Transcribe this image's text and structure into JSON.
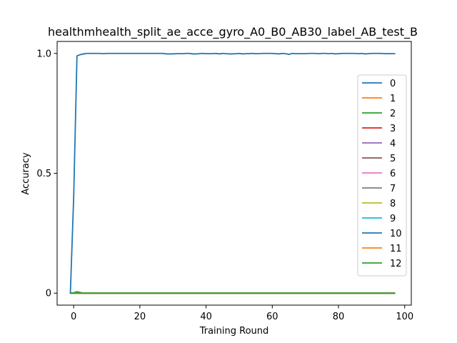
{
  "chart_data": {
    "type": "line",
    "title": "healthmhealth_split_ae_acce_gyro_A0_B0_AB30_label_AB_test_B",
    "xlabel": "Training Round",
    "ylabel": "Accuracy",
    "xlim": [
      -5,
      102
    ],
    "ylim": [
      -0.05,
      1.05
    ],
    "x_ticks": [
      0,
      20,
      40,
      60,
      80,
      100
    ],
    "x_tick_labels": [
      "0",
      "20",
      "40",
      "60",
      "80",
      "100"
    ],
    "y_ticks": [
      0,
      0.5,
      1.0
    ],
    "y_tick_labels": [
      "0",
      "0.5",
      "1.0"
    ],
    "grid": false,
    "legend_position": "right",
    "series": [
      {
        "name": "0",
        "color": "#1f77b4",
        "x_range": [
          -1,
          97
        ],
        "values_key": "flat0"
      },
      {
        "name": "1",
        "color": "#ff7f0e",
        "x_range": [
          -1,
          97
        ],
        "values_key": "flat0"
      },
      {
        "name": "2",
        "color": "#2ca02c",
        "x_range": [
          -1,
          97
        ],
        "values_key": "bump"
      },
      {
        "name": "3",
        "color": "#d62728",
        "x_range": [
          -1,
          97
        ],
        "values_key": "flat0"
      },
      {
        "name": "4",
        "color": "#9467bd",
        "x_range": [
          -1,
          97
        ],
        "values_key": "flat0"
      },
      {
        "name": "5",
        "color": "#8c564b",
        "x_range": [
          -1,
          97
        ],
        "values_key": "flat0"
      },
      {
        "name": "6",
        "color": "#e377c2",
        "x_range": [
          -1,
          97
        ],
        "values_key": "flat0"
      },
      {
        "name": "7",
        "color": "#7f7f7f",
        "x_range": [
          -1,
          97
        ],
        "values_key": "flat0"
      },
      {
        "name": "8",
        "color": "#bcbd22",
        "x_range": [
          -1,
          97
        ],
        "values_key": "flat0"
      },
      {
        "name": "9",
        "color": "#17becf",
        "x_range": [
          -1,
          97
        ],
        "values_key": "flat0"
      },
      {
        "name": "10",
        "color": "#1f77b4",
        "x_range": [
          -1,
          97
        ],
        "values_key": "main"
      },
      {
        "name": "11",
        "color": "#ff7f0e",
        "x_range": [
          -1,
          97
        ],
        "values_key": "flat0"
      },
      {
        "name": "12",
        "color": "#2ca02c",
        "x_range": [
          -1,
          97
        ],
        "values_key": "flat0"
      }
    ],
    "series_values": {
      "main": [
        0.0,
        0.4,
        0.99,
        0.995,
        0.998,
        1.0,
        1.0,
        1.0,
        1.0,
        1.0,
        0.999,
        1.0,
        1.0,
        1.0,
        1.0,
        1.0,
        1.0,
        1.0,
        1.0,
        1.0,
        1.0,
        1.0,
        1.0,
        1.0,
        1.0,
        1.0,
        1.0,
        1.0,
        1.0,
        0.998,
        0.998,
        0.998,
        0.999,
        0.999,
        0.999,
        1.0,
        1.0,
        0.998,
        0.998,
        0.999,
        1.0,
        0.999,
        0.999,
        0.999,
        1.0,
        0.998,
        1.0,
        0.999,
        0.998,
        0.998,
        0.999,
        1.0,
        0.998,
        0.999,
        0.999,
        1.0,
        0.999,
        0.999,
        1.0,
        1.0,
        1.0,
        1.0,
        0.999,
        0.998,
        1.0,
        0.999,
        0.996,
        1.0,
        0.999,
        0.999,
        0.999,
        0.999,
        1.0,
        1.0,
        1.0,
        0.999,
        1.0,
        1.0,
        0.999,
        1.0,
        0.998,
        0.999,
        1.0,
        1.0,
        1.0,
        1.0,
        1.0,
        0.999,
        1.0,
        0.998,
        0.999,
        1.0,
        1.0,
        1.0,
        1.0,
        0.999,
        0.999,
        0.999,
        0.999
      ],
      "bump": [
        0.0,
        0.002,
        0.006,
        0.003,
        0.0,
        0.0,
        0.0,
        0.0,
        0.0,
        0.0,
        0.0,
        0.0,
        0.0,
        0.0,
        0.0,
        0.0,
        0.0,
        0.0,
        0.0,
        0.0,
        0.0,
        0.0,
        0.0,
        0.0,
        0.0,
        0.0,
        0.0,
        0.0,
        0.0,
        0.0,
        0.0,
        0.0,
        0.0,
        0.0,
        0.0,
        0.0,
        0.0,
        0.0,
        0.0,
        0.0,
        0.0,
        0.0,
        0.0,
        0.0,
        0.0,
        0.0,
        0.0,
        0.0,
        0.0,
        0.0,
        0.0,
        0.0,
        0.0,
        0.0,
        0.0,
        0.0,
        0.0,
        0.0,
        0.0,
        0.0,
        0.0,
        0.0,
        0.0,
        0.0,
        0.0,
        0.0,
        0.0,
        0.0,
        0.0,
        0.0,
        0.0,
        0.0,
        0.0,
        0.0,
        0.0,
        0.0,
        0.0,
        0.0,
        0.0,
        0.0,
        0.0,
        0.0,
        0.0,
        0.0,
        0.0,
        0.0,
        0.0,
        0.0,
        0.0,
        0.0,
        0.0,
        0.0,
        0.0,
        0.0,
        0.0,
        0.0,
        0.0,
        0.0,
        0.0
      ],
      "flat0": [
        0.0,
        0.0,
        0.0,
        0.0,
        0.0,
        0.0,
        0.0,
        0.0,
        0.0,
        0.0,
        0.0,
        0.0,
        0.0,
        0.0,
        0.0,
        0.0,
        0.0,
        0.0,
        0.0,
        0.0,
        0.0,
        0.0,
        0.0,
        0.0,
        0.0,
        0.0,
        0.0,
        0.0,
        0.0,
        0.0,
        0.0,
        0.0,
        0.0,
        0.0,
        0.0,
        0.0,
        0.0,
        0.0,
        0.0,
        0.0,
        0.0,
        0.0,
        0.0,
        0.0,
        0.0,
        0.0,
        0.0,
        0.0,
        0.0,
        0.0,
        0.0,
        0.0,
        0.0,
        0.0,
        0.0,
        0.0,
        0.0,
        0.0,
        0.0,
        0.0,
        0.0,
        0.0,
        0.0,
        0.0,
        0.0,
        0.0,
        0.0,
        0.0,
        0.0,
        0.0,
        0.0,
        0.0,
        0.0,
        0.0,
        0.0,
        0.0,
        0.0,
        0.0,
        0.0,
        0.0,
        0.0,
        0.0,
        0.0,
        0.0,
        0.0,
        0.0,
        0.0,
        0.0,
        0.0,
        0.0,
        0.0,
        0.0,
        0.0,
        0.0,
        0.0,
        0.0,
        0.0,
        0.0,
        0.0
      ]
    }
  }
}
